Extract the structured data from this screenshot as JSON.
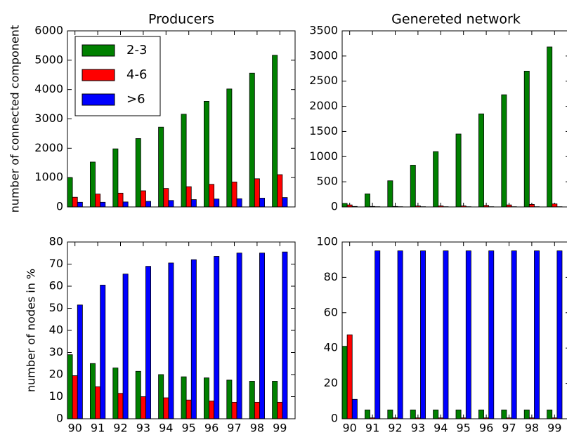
{
  "chart_data": [
    {
      "type": "bar",
      "title": "Producers",
      "ylabel": "number of connected component",
      "series": [
        {
          "name": "2-3",
          "color": "#008000",
          "values": [
            1000,
            1530,
            1980,
            2330,
            2720,
            3160,
            3600,
            4020,
            4560,
            5170
          ]
        },
        {
          "name": "4-6",
          "color": "#ff0000",
          "values": [
            330,
            440,
            470,
            550,
            630,
            690,
            770,
            850,
            960,
            1100
          ]
        },
        {
          "name": ">6",
          "color": "#0000ff",
          "values": [
            160,
            160,
            170,
            190,
            220,
            250,
            270,
            280,
            300,
            320
          ]
        }
      ],
      "ylim": [
        0,
        6000
      ],
      "yticks": [
        0,
        1000,
        2000,
        3000,
        4000,
        5000,
        6000
      ],
      "legend": "upper left"
    },
    {
      "type": "bar",
      "title": "Genereted network",
      "series": [
        {
          "color": "#008000",
          "values": [
            70,
            260,
            520,
            830,
            1100,
            1450,
            1850,
            2230,
            2700,
            3180
          ]
        },
        {
          "color": "#ff0000",
          "values": [
            40,
            10,
            10,
            20,
            20,
            20,
            30,
            40,
            50,
            60
          ]
        },
        {
          "color": "#0000ff",
          "values": [
            10,
            5,
            5,
            5,
            5,
            5,
            5,
            5,
            5,
            5
          ]
        }
      ],
      "ylim": [
        0,
        3500
      ],
      "yticks": [
        0,
        500,
        1000,
        1500,
        2000,
        2500,
        3000,
        3500
      ]
    },
    {
      "type": "bar",
      "ylabel": "number of nodes in %",
      "categories": [
        "90",
        "91",
        "92",
        "93",
        "94",
        "95",
        "96",
        "97",
        "98",
        "99"
      ],
      "series": [
        {
          "color": "#008000",
          "values": [
            29,
            25,
            23,
            21.5,
            20,
            19,
            18.5,
            17.5,
            17,
            17
          ]
        },
        {
          "color": "#ff0000",
          "values": [
            19.5,
            14.5,
            11.5,
            10,
            9.5,
            8.5,
            8,
            7.5,
            7.5,
            7.5
          ]
        },
        {
          "color": "#0000ff",
          "values": [
            51.5,
            60.5,
            65.5,
            69,
            70.5,
            72,
            73.5,
            75,
            75,
            75.5
          ]
        }
      ],
      "ylim": [
        0,
        80
      ],
      "yticks": [
        0,
        10,
        20,
        30,
        40,
        50,
        60,
        70,
        80
      ]
    },
    {
      "type": "bar",
      "categories": [
        "90",
        "91",
        "92",
        "93",
        "94",
        "95",
        "96",
        "97",
        "98",
        "99"
      ],
      "series": [
        {
          "color": "#008000",
          "values": [
            41,
            5,
            5,
            5,
            5,
            5,
            5,
            5,
            5,
            5
          ]
        },
        {
          "color": "#ff0000",
          "values": [
            47.5,
            0.5,
            0.5,
            0.5,
            0.5,
            0.5,
            0.5,
            0.5,
            0.5,
            0.5
          ]
        },
        {
          "color": "#0000ff",
          "values": [
            11,
            95,
            95,
            95,
            95,
            95,
            95,
            95,
            95,
            95
          ]
        }
      ],
      "ylim": [
        0,
        100
      ],
      "yticks": [
        0,
        20,
        40,
        60,
        80,
        100
      ]
    }
  ]
}
